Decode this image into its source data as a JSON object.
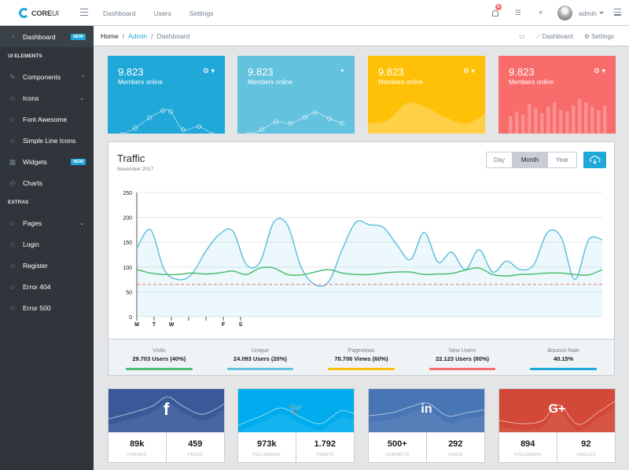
{
  "header": {
    "brand_strong": "CORE",
    "brand_light": "UI",
    "nav": [
      "Dashboard",
      "Users",
      "Settings"
    ],
    "notif_count": "5",
    "user": "admin"
  },
  "sidebar": {
    "items": [
      {
        "label": "Dashboard",
        "icon": "speedometer-icon",
        "badge": "NEW",
        "active": true
      },
      {
        "title": "UI ELEMENTS"
      },
      {
        "label": "Components",
        "icon": "puzzle-icon",
        "chevron": "‹"
      },
      {
        "label": "Icons",
        "icon": "star-icon",
        "chevron": "⌄"
      },
      {
        "label": "Font Awesome",
        "icon": "star-icon"
      },
      {
        "label": "Simple Line Icons",
        "icon": "star-icon"
      },
      {
        "label": "Widgets",
        "icon": "calculator-icon",
        "badge": "NEW"
      },
      {
        "label": "Charts",
        "icon": "pie-chart-icon"
      },
      {
        "title": "EXTRAS"
      },
      {
        "label": "Pages",
        "icon": "star-icon",
        "chevron": "⌄"
      },
      {
        "label": "Login",
        "icon": "star-icon"
      },
      {
        "label": "Register",
        "icon": "star-icon"
      },
      {
        "label": "Error 404",
        "icon": "star-icon"
      },
      {
        "label": "Error 500",
        "icon": "star-icon"
      }
    ]
  },
  "breadcrumb": {
    "home": "Home",
    "admin": "Admin",
    "current": "Dashboard",
    "menu_dashboard": "Dashboard",
    "menu_settings": "Settings"
  },
  "cards": [
    {
      "value": "9.823",
      "label": "Members online",
      "color": "#20a8d8",
      "icon": "gear-icon",
      "style": "line"
    },
    {
      "value": "9.823",
      "label": "Members online",
      "color": "#63c2de",
      "icon": "location-pin-icon",
      "style": "line"
    },
    {
      "value": "9.823",
      "label": "Members online",
      "color": "#ffc107",
      "icon": "gear-icon",
      "style": "area"
    },
    {
      "value": "9.823",
      "label": "Members online",
      "color": "#f86c6b",
      "icon": "gear-icon",
      "style": "bar"
    }
  ],
  "traffic": {
    "title": "Traffic",
    "subtitle": "November 2017",
    "buttons": [
      "Day",
      "Month",
      "Year"
    ],
    "stats": [
      {
        "label": "Visits",
        "value": "29.703 Users (40%)",
        "color": "#4dbd74"
      },
      {
        "label": "Unique",
        "value": "24.093 Users (20%)",
        "color": "#63c2de"
      },
      {
        "label": "Pageviews",
        "value": "78.706 Views (60%)",
        "color": "#ffc107"
      },
      {
        "label": "New Users",
        "value": "22.123 Users (80%)",
        "color": "#f86c6b"
      },
      {
        "label": "Bounce Rate",
        "value": "40.15%",
        "color": "#20a8d8"
      }
    ]
  },
  "chart_data": {
    "type": "line",
    "ylim": [
      0,
      250
    ],
    "yticks": [
      0,
      50,
      100,
      150,
      200,
      250
    ],
    "xticks": [
      "M",
      "T",
      "W",
      "",
      "",
      "F",
      "S"
    ],
    "series": [
      {
        "color": "#63c2de",
        "values": [
          138,
          175,
          95,
          75,
          85,
          130,
          165,
          173,
          105,
          110,
          190,
          185,
          100,
          65,
          70,
          135,
          190,
          185,
          180,
          145,
          115,
          170,
          110,
          130,
          95,
          135,
          90,
          112,
          95,
          105,
          170,
          160,
          75,
          155,
          155
        ]
      },
      {
        "color": "#4dbd74",
        "values": [
          95,
          88,
          85,
          85,
          88,
          86,
          88,
          92,
          85,
          98,
          98,
          85,
          84,
          90,
          95,
          88,
          85,
          85,
          88,
          90,
          90,
          85,
          86,
          87,
          94,
          98,
          85,
          82,
          85,
          86,
          88,
          88,
          85,
          84,
          95
        ]
      }
    ],
    "threshold": {
      "value": 65,
      "color": "#f86c6b"
    }
  },
  "social": [
    {
      "icon": "facebook-icon",
      "glyph": "f",
      "color": "#3b5998",
      "v1": "89k",
      "c1": "FRIENDS",
      "v2": "459",
      "c2": "FEEDS"
    },
    {
      "icon": "twitter-icon",
      "glyph": "🐦",
      "color": "#00aced",
      "v1": "973k",
      "c1": "FOLLOWERS",
      "v2": "1.792",
      "c2": "TWEETS"
    },
    {
      "icon": "linkedin-icon",
      "glyph": "in",
      "color": "#4875b4",
      "v1": "500+",
      "c1": "CONTACTS",
      "v2": "292",
      "c2": "FEEDS"
    },
    {
      "icon": "google-plus-icon",
      "glyph": "G+",
      "color": "#d34836",
      "v1": "894",
      "c1": "FOLLOWERS",
      "v2": "92",
      "c2": "CIRCLES"
    }
  ]
}
